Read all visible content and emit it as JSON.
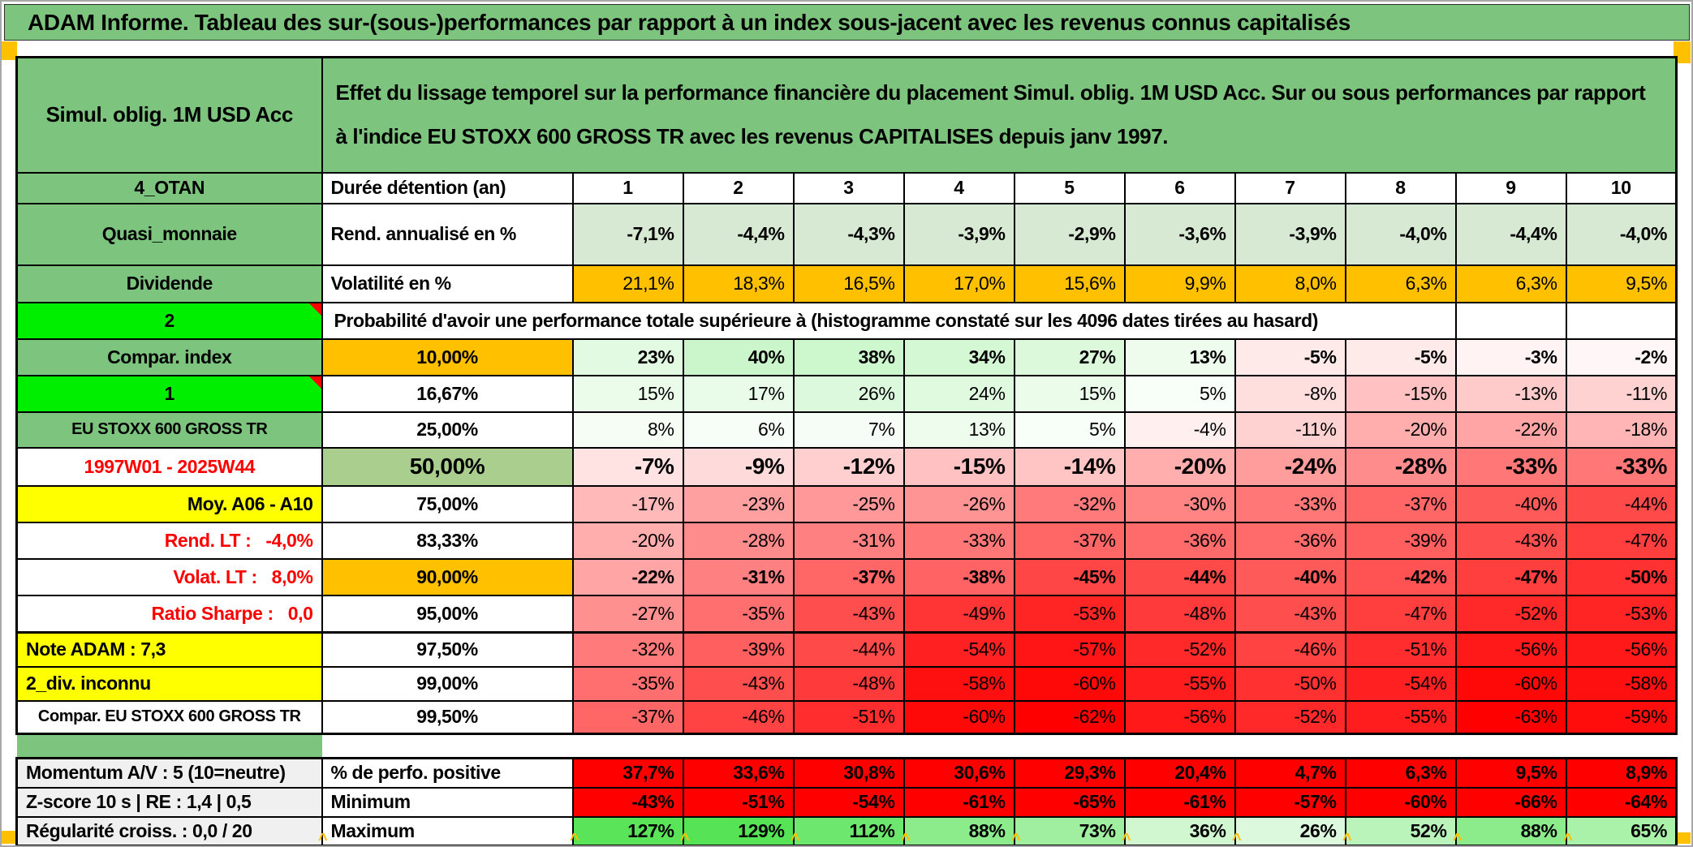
{
  "title": "ADAM Informe. Tableau des sur-(sous-)performances par rapport à un index sous-jacent avec les revenus connus capitalisés",
  "header": {
    "left": "Simul. oblig. 1M USD Acc",
    "right": "Effet du lissage temporel sur la performance financière du placement Simul. oblig. 1M USD Acc. Sur ou sous performances par rapport à l'indice EU STOXX 600 GROSS TR avec les revenus CAPITALISES depuis janv 1997."
  },
  "colors": {
    "header_green": "#7dc57e",
    "orange": "#ffc000",
    "bright_green": "#00ef00",
    "yellow": "#ffff00",
    "sage_green": "#a9ce8e",
    "light_green_row": "#d8e9d3",
    "solid_red_row": "#fe0000",
    "gray_label": "#f0f0f0",
    "red_text": "#ff0000",
    "heat_negative_max": "#ff0000",
    "heat_positive_max": "#55e255"
  },
  "rows": {
    "duree": {
      "a": "4_OTAN",
      "b": "Durée détention (an)",
      "v": [
        "1",
        "2",
        "3",
        "4",
        "5",
        "6",
        "7",
        "8",
        "9",
        "10"
      ]
    },
    "rend": {
      "a": "Quasi_monnaie",
      "b": "Rend. annualisé en %",
      "v": [
        "-7,1%",
        "-4,4%",
        "-4,3%",
        "-3,9%",
        "-2,9%",
        "-3,6%",
        "-3,9%",
        "-4,0%",
        "-4,4%",
        "-4,0%"
      ]
    },
    "volat": {
      "a": "Dividende",
      "b": "Volatilité en %",
      "v": [
        "21,1%",
        "18,3%",
        "16,5%",
        "17,0%",
        "15,6%",
        "9,9%",
        "8,0%",
        "6,3%",
        "6,3%",
        "9,5%"
      ]
    },
    "proba": {
      "a": "2",
      "b": "Probabilité d'avoir une performance totale supérieure à (histogramme constaté sur les 4096 dates tirées au hasard)"
    },
    "p10": {
      "a": "Compar. index",
      "b": "10,00%",
      "v": [
        23,
        40,
        38,
        34,
        27,
        13,
        -5,
        -5,
        -3,
        -2
      ]
    },
    "p1667": {
      "a": "1",
      "b": "16,67%",
      "v": [
        15,
        17,
        26,
        24,
        15,
        5,
        -8,
        -15,
        -13,
        -11
      ]
    },
    "p25": {
      "a": "EU STOXX 600 GROSS TR",
      "b": "25,00%",
      "v": [
        8,
        6,
        7,
        13,
        5,
        -4,
        -11,
        -20,
        -22,
        -18
      ]
    },
    "p50": {
      "a": "1997W01 - 2025W44",
      "b": "50,00%",
      "v": [
        -7,
        -9,
        -12,
        -15,
        -14,
        -20,
        -24,
        -28,
        -33,
        -33
      ]
    },
    "p75": {
      "a": "Moy. A06 - A10",
      "b": "75,00%",
      "v": [
        -17,
        -23,
        -25,
        -26,
        -32,
        -30,
        -33,
        -37,
        -40,
        -44
      ]
    },
    "p8333": {
      "a": "Rend. LT :   -4,0%",
      "b": "83,33%",
      "v": [
        -20,
        -28,
        -31,
        -33,
        -37,
        -36,
        -36,
        -39,
        -43,
        -47
      ]
    },
    "p90": {
      "a": "Volat. LT :   8,0%",
      "b": "90,00%",
      "v": [
        -22,
        -31,
        -37,
        -38,
        -45,
        -44,
        -40,
        -42,
        -47,
        -50
      ]
    },
    "p95": {
      "a": "Ratio Sharpe :   0,0",
      "b": "95,00%",
      "v": [
        -27,
        -35,
        -43,
        -49,
        -53,
        -48,
        -43,
        -47,
        -52,
        -53
      ]
    },
    "p975": {
      "a": "Note ADAM : 7,3",
      "b": "97,50%",
      "v": [
        -32,
        -39,
        -44,
        -54,
        -57,
        -52,
        -46,
        -51,
        -56,
        -56
      ]
    },
    "p99": {
      "a": "2_div. inconnu",
      "b": "99,00%",
      "v": [
        -35,
        -43,
        -48,
        -58,
        -60,
        -55,
        -50,
        -54,
        -60,
        -58
      ]
    },
    "p995": {
      "a": "Compar. EU STOXX 600 GROSS TR",
      "b": "99,50%",
      "v": [
        -37,
        -46,
        -51,
        -60,
        -62,
        -56,
        -52,
        -55,
        -63,
        -59
      ]
    },
    "perfo": {
      "a": "Momentum A/V : 5 (10=neutre)",
      "b": "% de perfo. positive",
      "v": [
        "37,7%",
        "33,6%",
        "30,8%",
        "30,6%",
        "29,3%",
        "20,4%",
        "4,7%",
        "6,3%",
        "9,5%",
        "8,9%"
      ]
    },
    "min": {
      "a": "Z-score 10 s | RE : 1,4 | 0,5",
      "b": "Minimum",
      "v": [
        "-43%",
        "-51%",
        "-54%",
        "-61%",
        "-65%",
        "-61%",
        "-57%",
        "-60%",
        "-66%",
        "-64%"
      ]
    },
    "max": {
      "a": "Régularité croiss. : 0,0 / 20",
      "b": "Maximum",
      "v": [
        127,
        129,
        112,
        88,
        73,
        36,
        26,
        52,
        88,
        65
      ]
    }
  }
}
